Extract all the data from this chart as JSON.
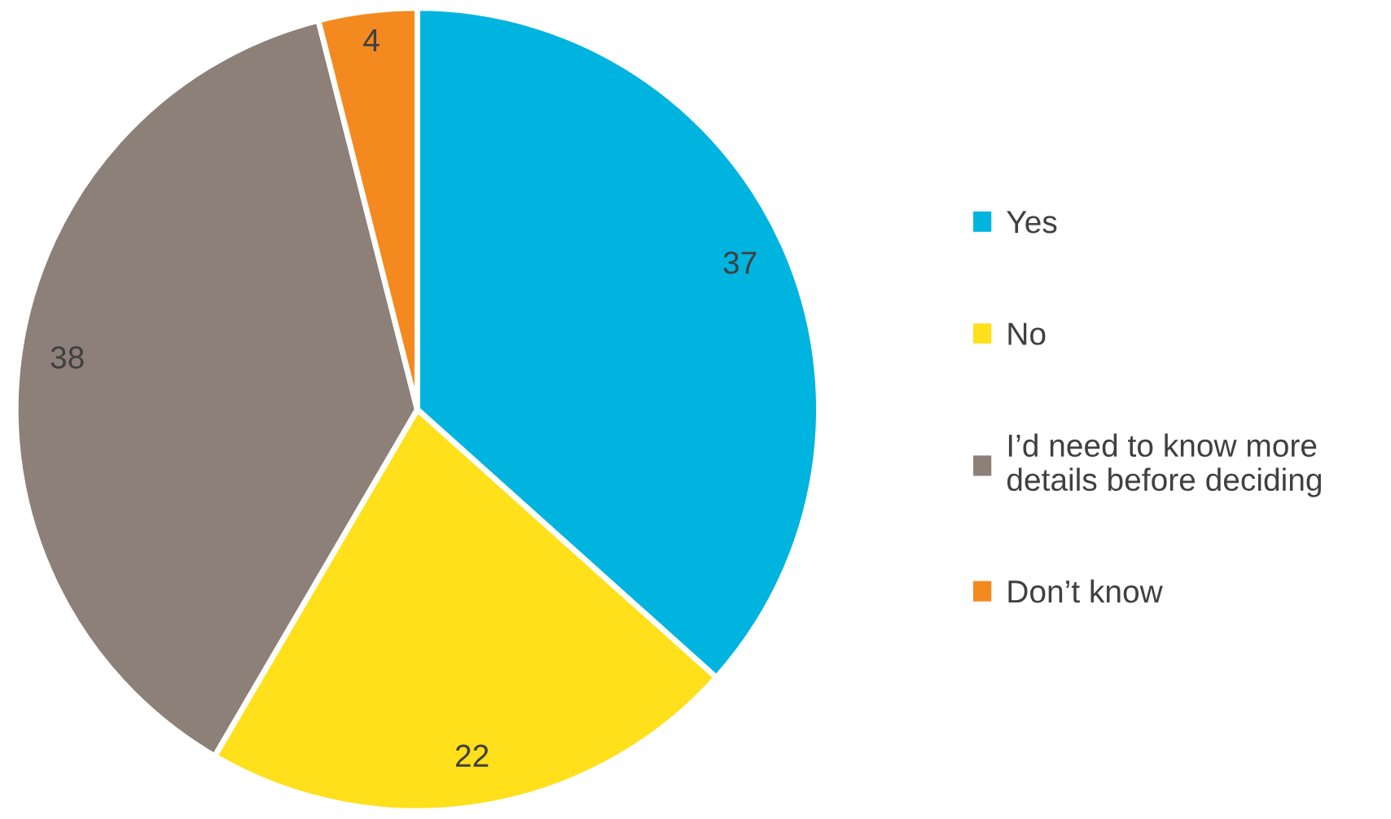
{
  "chart_data": {
    "type": "pie",
    "categories": [
      "Yes",
      "No",
      "I’d need to know more\ndetails before deciding",
      "Don’t know"
    ],
    "values": [
      37,
      22,
      38,
      4
    ],
    "colors": [
      "#00b4e0",
      "#ffe01a",
      "#8c8078",
      "#f4891f"
    ],
    "data_labels": true,
    "legend": "right"
  }
}
